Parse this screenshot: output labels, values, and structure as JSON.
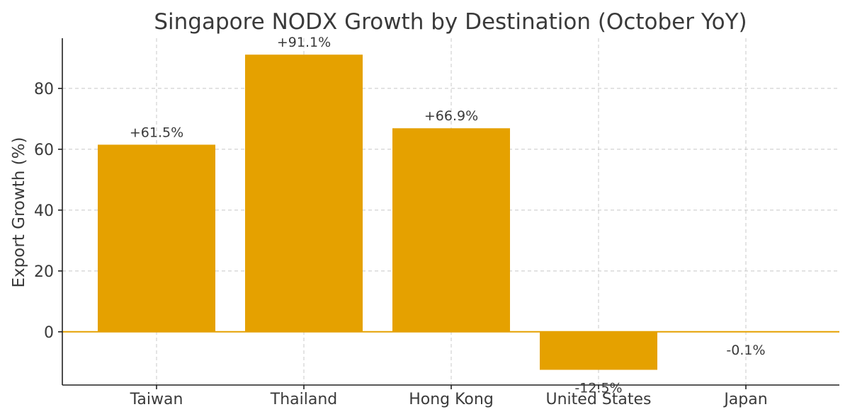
{
  "chart_data": {
    "type": "bar",
    "title": "Singapore NODX Growth by Destination (October YoY)",
    "xlabel": "",
    "ylabel": "Export Growth (%)",
    "categories": [
      "Taiwan",
      "Thailand",
      "Hong Kong",
      "United States",
      "Japan"
    ],
    "values": [
      61.5,
      91.1,
      66.9,
      -12.5,
      -0.1
    ],
    "data_labels": [
      "+61.5%",
      "+91.1%",
      "+66.9%",
      "-12.5%",
      "-0.1%"
    ],
    "yticks": [
      0,
      20,
      40,
      60,
      80
    ],
    "ylim": [
      -17.5,
      96.5
    ],
    "grid": true,
    "colors": {
      "bar": "#e5a100",
      "zero_line": "#e5a100",
      "text": "#3a3a3a"
    }
  }
}
